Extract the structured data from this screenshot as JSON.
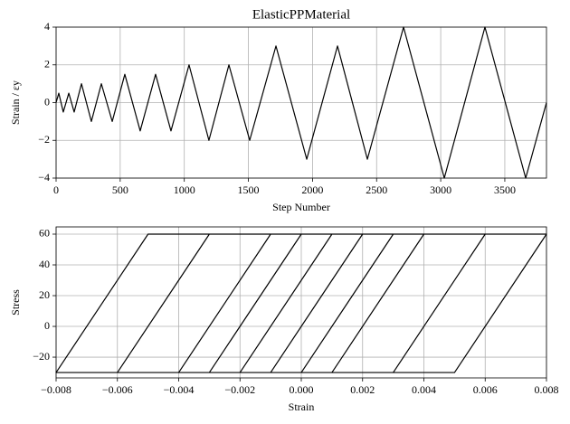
{
  "chart_data": [
    {
      "type": "line",
      "title": "ElasticPPMaterial",
      "xlabel": "Step Number",
      "ylabel": "Strain / εy",
      "color": "#000000",
      "grid": true,
      "x": [
        0,
        21,
        56,
        99,
        141,
        198,
        275,
        353,
        438,
        536,
        656,
        776,
        896,
        1037,
        1192,
        1348,
        1510,
        1715,
        1955,
        2195,
        2428,
        2710,
        3028,
        3345,
        3663,
        3825
      ],
      "values": [
        0,
        0.5,
        -0.5,
        0.5,
        -0.5,
        1,
        -1,
        1,
        -1,
        1.5,
        -1.5,
        1.5,
        -1.5,
        2,
        -2,
        2,
        -2,
        3,
        -3,
        3,
        -3,
        4,
        -4,
        4,
        -4,
        0
      ],
      "xlim": [
        0,
        3825
      ],
      "ylim": [
        -4,
        4
      ],
      "xticks": [
        0,
        500,
        1000,
        1500,
        2000,
        2500,
        3000,
        3500
      ],
      "yticks": [
        {
          "value": -4,
          "label": "−4"
        },
        {
          "value": -2,
          "label": "−2"
        },
        0,
        2,
        4
      ]
    },
    {
      "type": "line",
      "xlabel": "Strain",
      "ylabel": "Stress",
      "color": "#000000",
      "grid": true,
      "x": [
        0,
        0.001,
        -0.001,
        0.001,
        -0.001,
        0.002,
        -0.001,
        -0.002,
        0.001,
        0.002,
        -0.001,
        -0.002,
        0.001,
        0.003,
        0,
        -0.003,
        0,
        0.003,
        0,
        -0.003,
        0,
        0.004,
        0.001,
        -0.004,
        -0.001,
        0.004,
        0.001,
        -0.004,
        -0.001,
        0.006,
        0.003,
        -0.006,
        -0.003,
        0.006,
        0.003,
        -0.006,
        -0.003,
        0.008,
        0.005,
        -0.008,
        -0.005,
        0.008,
        0.005,
        -0.008,
        -0.005,
        0
      ],
      "values": [
        0,
        30,
        -30,
        30,
        -30,
        60,
        -30,
        -30,
        60,
        60,
        -30,
        -30,
        60,
        60,
        -30,
        -30,
        60,
        60,
        -30,
        -30,
        60,
        60,
        -30,
        -30,
        60,
        60,
        -30,
        -30,
        60,
        60,
        -30,
        -30,
        60,
        60,
        -30,
        -30,
        60,
        60,
        -30,
        -30,
        60,
        60,
        -30,
        -30,
        60,
        60
      ],
      "xlim": [
        -0.008,
        0.008
      ],
      "ylim": [
        -33.5,
        64.7
      ],
      "xticks": [
        {
          "value": -0.008,
          "label": "−0.008"
        },
        {
          "value": -0.006,
          "label": "−0.006"
        },
        {
          "value": -0.004,
          "label": "−0.004"
        },
        {
          "value": -0.002,
          "label": "−0.002"
        },
        {
          "value": 0,
          "label": "0.000"
        },
        0.002,
        0.004,
        0.006,
        0.008
      ],
      "yticks": [
        {
          "value": -20,
          "label": "−20"
        },
        0,
        20,
        40,
        60
      ]
    }
  ]
}
